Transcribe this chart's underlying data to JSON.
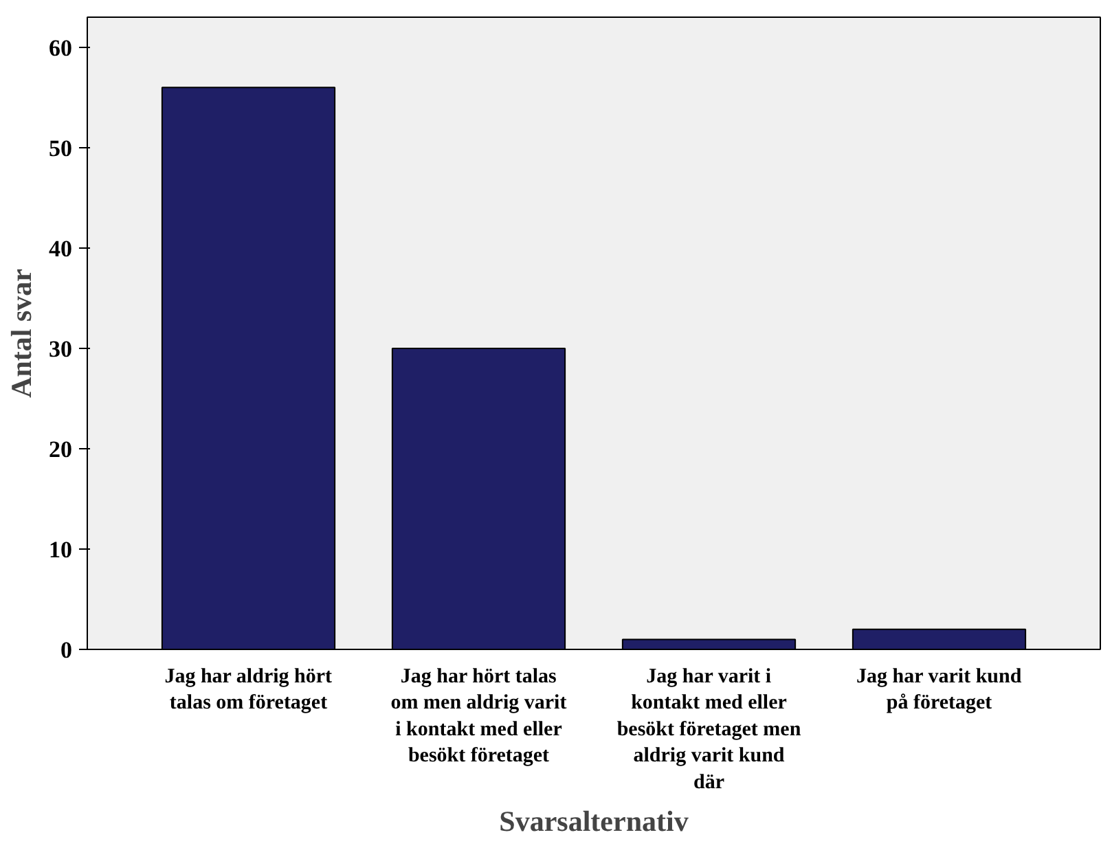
{
  "chart_data": {
    "type": "bar",
    "xlabel": "Svarsalternativ",
    "ylabel": "Antal svar",
    "categories": [
      "Jag har aldrig hört talas om företaget",
      "Jag har hört talas om men aldrig varit i kontakt med eller besökt företaget",
      "Jag har varit i kontakt med eller besökt företaget men aldrig varit kund där",
      "Jag har varit kund på företaget"
    ],
    "values": [
      56,
      30,
      1,
      2
    ],
    "color": "#1f1f66",
    "ylim": [
      0,
      63
    ],
    "yticks": [
      0,
      10,
      20,
      30,
      40,
      50,
      60
    ],
    "grid": false
  }
}
